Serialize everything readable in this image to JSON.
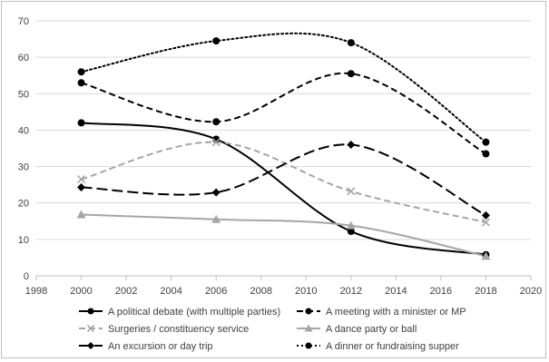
{
  "chart_data": {
    "type": "line",
    "title": "",
    "xlabel": "",
    "ylabel": "",
    "xlim": [
      1998,
      2020
    ],
    "ylim": [
      0,
      70
    ],
    "x_ticks": [
      1998,
      2000,
      2002,
      2004,
      2006,
      2008,
      2010,
      2012,
      2014,
      2016,
      2018,
      2020
    ],
    "y_ticks": [
      0,
      10,
      20,
      30,
      40,
      50,
      60,
      70
    ],
    "grid": "horizontal",
    "smooth": true,
    "legend_position": "bottom",
    "series": [
      {
        "name": "A political debate (with multiple parties)",
        "x": [
          2000,
          2006,
          2012,
          2018
        ],
        "values": [
          42,
          37.5,
          12.2,
          5.8
        ],
        "color": "#000000",
        "dash": "solid",
        "marker": "circle"
      },
      {
        "name": "A meeting with a minister or MP",
        "x": [
          2000,
          2006,
          2012,
          2018
        ],
        "values": [
          53,
          42.3,
          55.5,
          33.5
        ],
        "color": "#000000",
        "dash": "dash",
        "marker": "circle"
      },
      {
        "name": "Surgeries / constituency service",
        "x": [
          2000,
          2006,
          2012,
          2018
        ],
        "values": [
          26.5,
          36.7,
          23.2,
          14.7
        ],
        "color": "#a6a6a6",
        "dash": "dash",
        "marker": "x"
      },
      {
        "name": "A dance party or ball",
        "x": [
          2000,
          2006,
          2012,
          2018
        ],
        "values": [
          16.8,
          15.5,
          13.8,
          5.4
        ],
        "color": "#a6a6a6",
        "dash": "solid",
        "marker": "triangle"
      },
      {
        "name": "An excursion or day trip",
        "x": [
          2000,
          2006,
          2012,
          2018
        ],
        "values": [
          24.3,
          22.9,
          36,
          16.6
        ],
        "color": "#000000",
        "dash": "longdash",
        "marker": "diamond"
      },
      {
        "name": "A dinner or fundraising supper",
        "x": [
          2000,
          2006,
          2012,
          2018
        ],
        "values": [
          56,
          64.5,
          64,
          36.7
        ],
        "color": "#000000",
        "dash": "dot",
        "marker": "circle"
      }
    ]
  }
}
